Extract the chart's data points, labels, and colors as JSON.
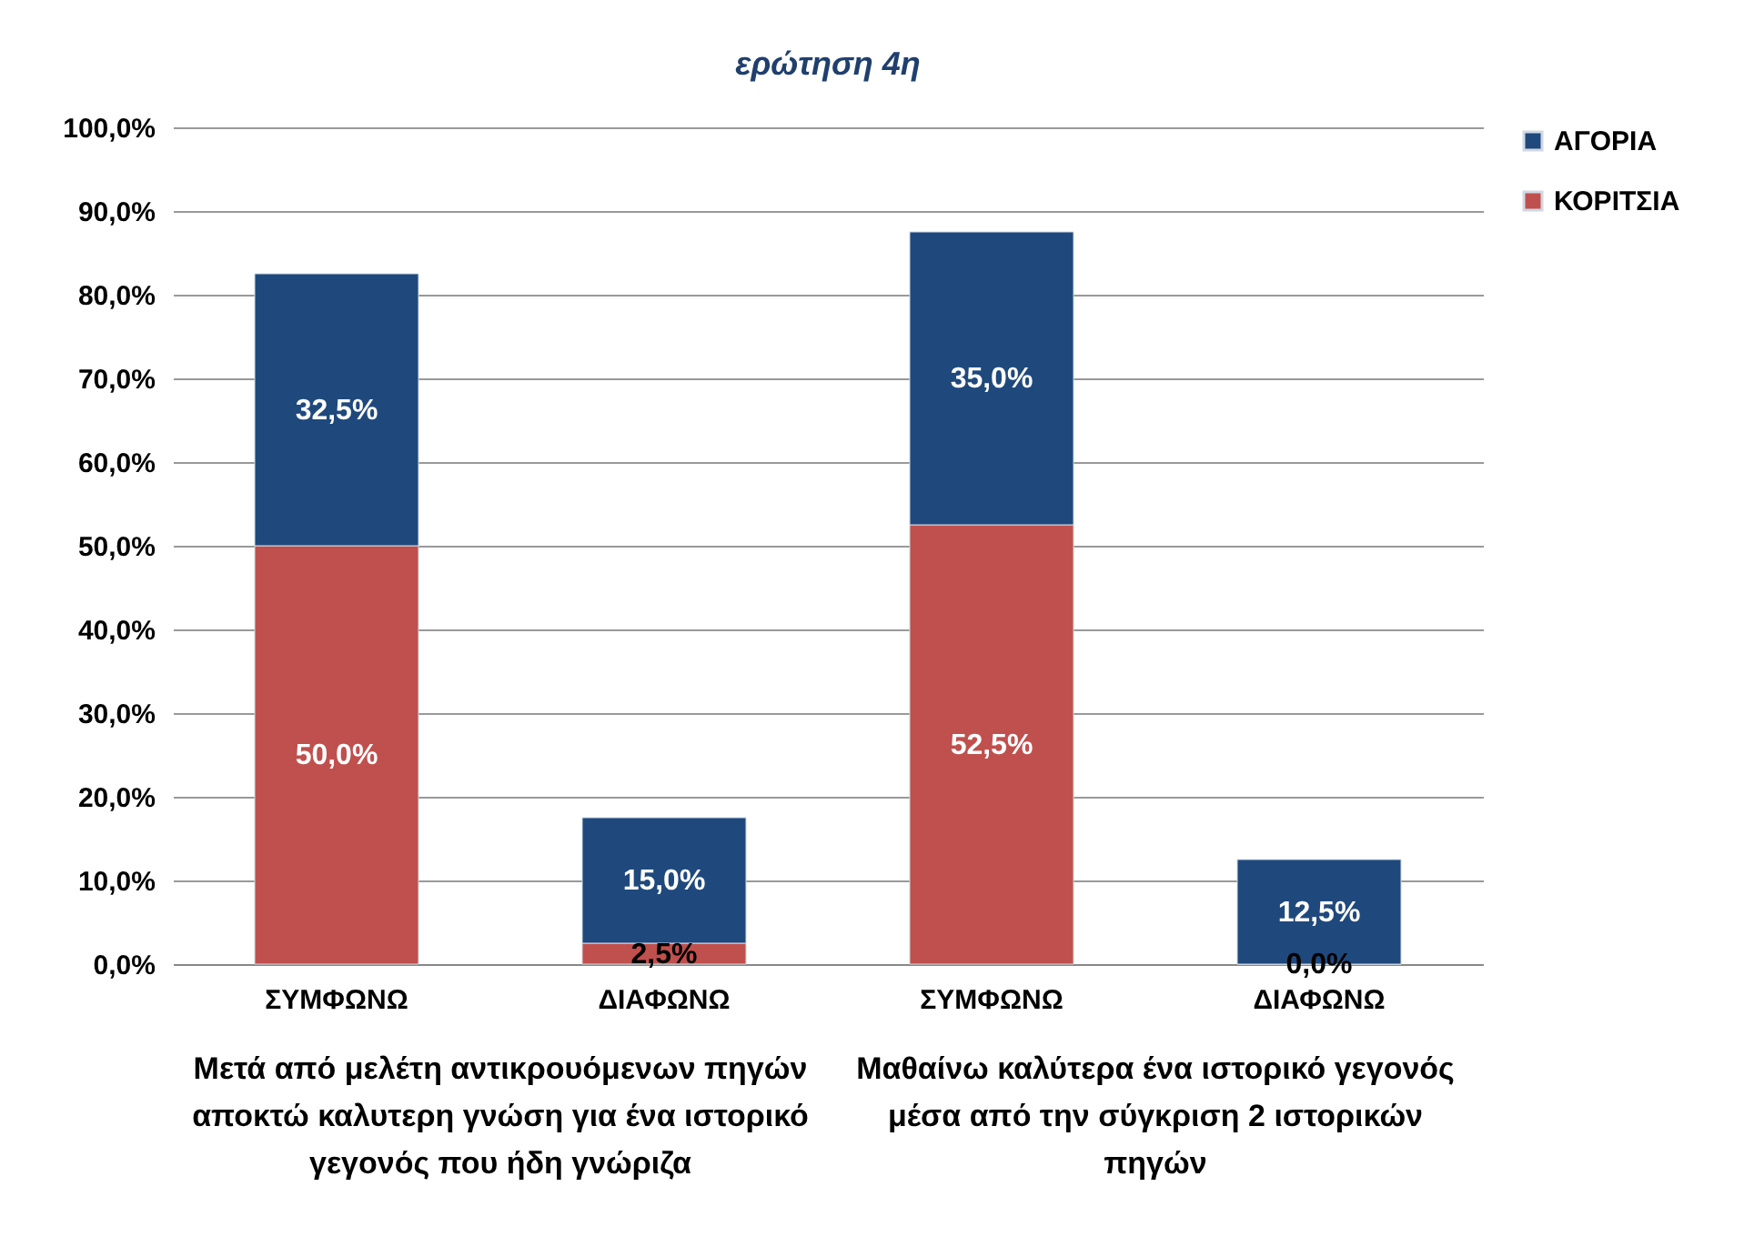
{
  "chart_data": {
    "type": "bar",
    "title": "ερώτηση 4η",
    "stacked": true,
    "categories": [
      "ΣΥΜΦΩΝΩ",
      "ΔΙΑΦΩΝΩ",
      "ΣΥΜΦΩΝΩ",
      "ΔΙΑΦΩΝΩ"
    ],
    "series": [
      {
        "name": "ΚΟΡΙΤΣΙΑ",
        "color": "#c0504d",
        "values": [
          50,
          2.5,
          52.5,
          0
        ],
        "value_labels": [
          "50,0%",
          "2,5%",
          "52,5%",
          "0,0%"
        ]
      },
      {
        "name": "ΑΓΟΡΙΑ",
        "color": "#1f497d",
        "values": [
          32.5,
          15,
          35,
          12.5
        ],
        "value_labels": [
          "32,5%",
          "15,0%",
          "35,0%",
          "12,5%"
        ]
      }
    ],
    "ylim": [
      0,
      100
    ],
    "yticks": [
      {
        "value": 0,
        "label": "0,0%"
      },
      {
        "value": 10,
        "label": "10,0%"
      },
      {
        "value": 20,
        "label": "20,0%"
      },
      {
        "value": 30,
        "label": "30,0%"
      },
      {
        "value": 40,
        "label": "40,0%"
      },
      {
        "value": 50,
        "label": "50,0%"
      },
      {
        "value": 60,
        "label": "60,0%"
      },
      {
        "value": 70,
        "label": "70,0%"
      },
      {
        "value": 80,
        "label": "80,0%"
      },
      {
        "value": 90,
        "label": "90,0%"
      },
      {
        "value": 100,
        "label": "100,0%"
      }
    ],
    "grid": "y",
    "legend": "right",
    "annotations": [
      "Μετά από μελέτη αντικρουόμενων πηγών αποκτώ καλυτερη γνώση για ένα ιστορικό γεγονός που ήδη γνώριζα",
      "Μαθαίνω καλύτερα ένα ιστορικό γεγονός μέσα από την σύγκριση 2 ιστορικών πηγών"
    ]
  }
}
